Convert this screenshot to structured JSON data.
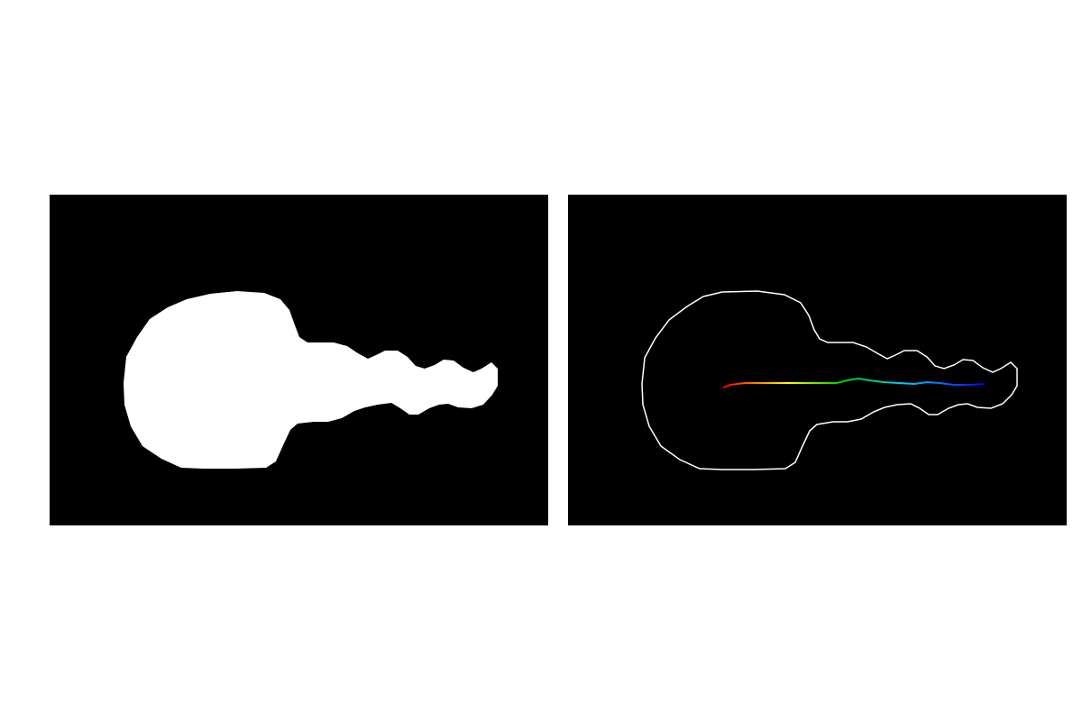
{
  "figure": {
    "background_color": "#ffffff",
    "panel_background_color": "#000000",
    "panels": [
      {
        "id": "mask",
        "content": "filled-silhouette",
        "fill_color": "#ffffff"
      },
      {
        "id": "contour-skeleton",
        "content": "outline-with-colored-centerline",
        "outline_color": "#ffffff",
        "centerline_gradient": [
          "#ff0000",
          "#ffff00",
          "#00cc00",
          "#00ccff",
          "#0000ff"
        ]
      }
    ]
  }
}
